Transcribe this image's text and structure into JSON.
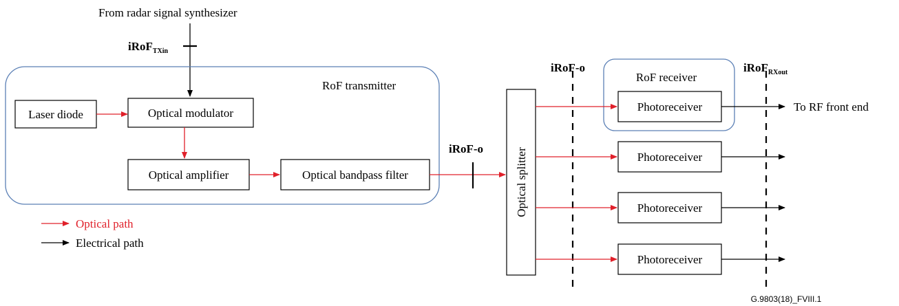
{
  "diagram": {
    "source_label": "From radar signal synthesizer",
    "interface_tx_in": {
      "main": "iRoF",
      "sub": "TXin"
    },
    "interface_rx_out": {
      "main": "iRoF",
      "sub": "RXout"
    },
    "interface_optical": "iRoF-o",
    "interface_optical_2": "iRoF-o",
    "transmitter_group_label": "RoF transmitter",
    "receiver_group_label": "RoF receiver",
    "blocks": {
      "laser_diode": "Laser diode",
      "optical_modulator": "Optical modulator",
      "optical_amplifier": "Optical amplifier",
      "optical_bandpass_filter": "Optical bandpass filter",
      "optical_splitter": "Optical splitter",
      "photoreceivers": [
        "Photoreceiver",
        "Photoreceiver",
        "Photoreceiver",
        "Photoreceiver"
      ]
    },
    "output_label": "To RF front end",
    "legend": {
      "optical": "Optical path",
      "electrical": "Electrical path"
    },
    "colors": {
      "optical_path": "#e0202a",
      "electrical_path": "#000000",
      "group_border": "#5a7fb5"
    },
    "figure_id": "G.9803(18)_FVIII.1"
  }
}
